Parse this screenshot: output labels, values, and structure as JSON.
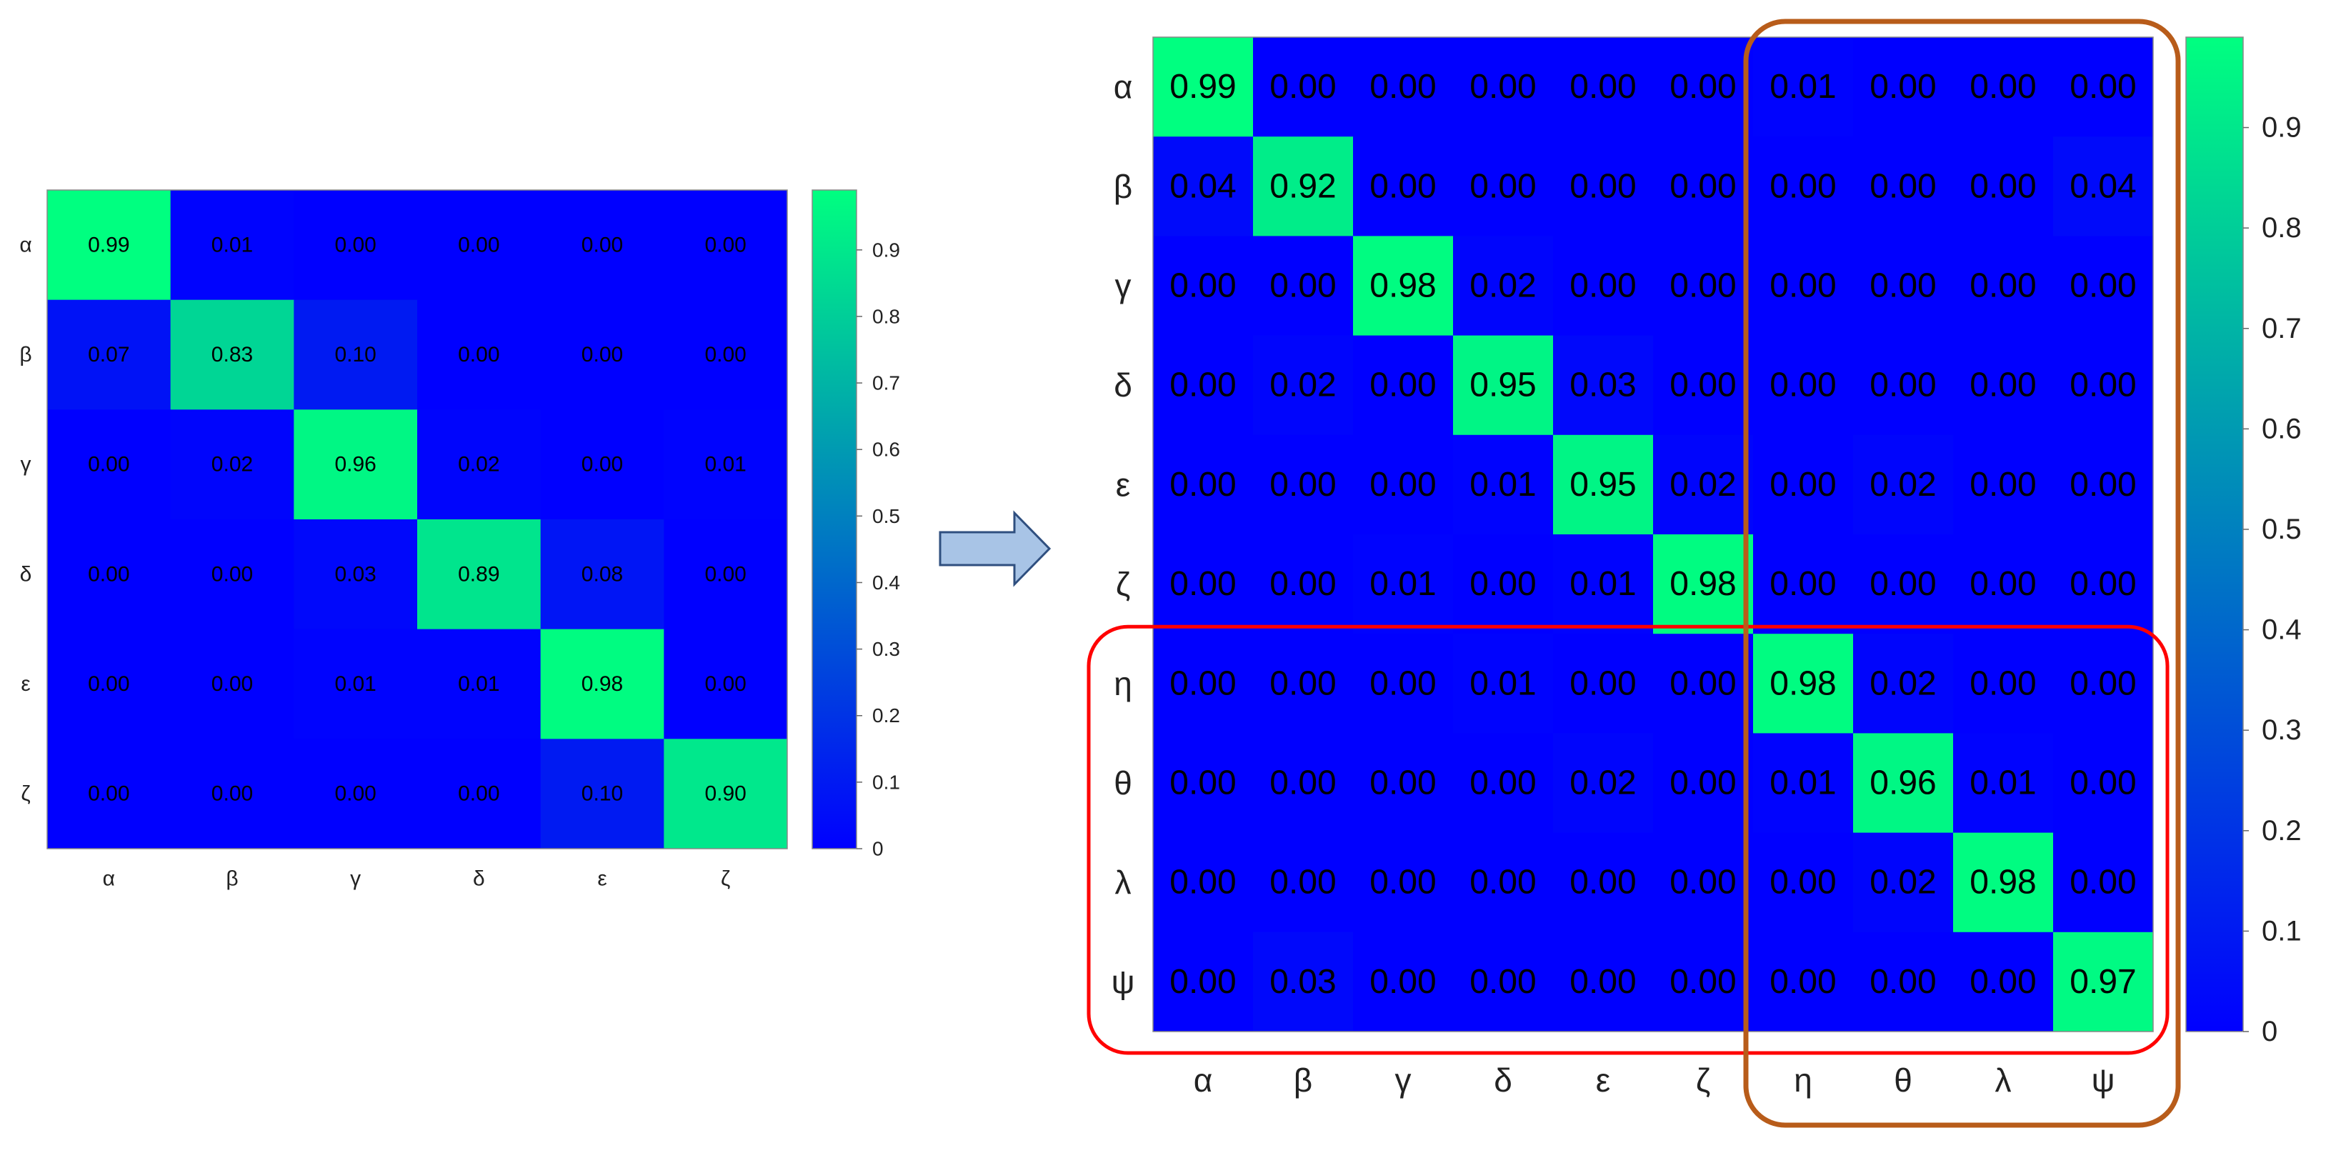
{
  "colors": {
    "low": "#0000FF",
    "high": "#00FF80",
    "arrow_fill": "#A8C4E6",
    "arrow_stroke": "#2F4F7F",
    "unseen_rows_box": "#FF0000",
    "unseen_cols_box": "#B85C1A"
  },
  "chart_data": [
    {
      "type": "heatmap",
      "title": "",
      "xlabel": "",
      "ylabel": "",
      "x_categories": [
        "α",
        "β",
        "γ",
        "δ",
        "ε",
        "ζ"
      ],
      "y_categories": [
        "α",
        "β",
        "γ",
        "δ",
        "ε",
        "ζ"
      ],
      "values": [
        [
          0.99,
          0.01,
          0.0,
          0.0,
          0.0,
          0.0
        ],
        [
          0.07,
          0.83,
          0.1,
          0.0,
          0.0,
          0.0
        ],
        [
          0.0,
          0.02,
          0.96,
          0.02,
          0.0,
          0.01
        ],
        [
          0.0,
          0.0,
          0.03,
          0.89,
          0.08,
          0.0
        ],
        [
          0.0,
          0.0,
          0.01,
          0.01,
          0.98,
          0.0
        ],
        [
          0.0,
          0.0,
          0.0,
          0.0,
          0.1,
          0.9
        ]
      ],
      "colorbar": {
        "min": 0,
        "max": 0.99,
        "ticks": [
          0,
          0.1,
          0.2,
          0.3,
          0.4,
          0.5,
          0.6,
          0.7,
          0.8,
          0.9
        ],
        "tick_labels": [
          "0",
          "0.1",
          "0.2",
          "0.3",
          "0.4",
          "0.5",
          "0.6",
          "0.7",
          "0.8",
          "0.9"
        ]
      }
    },
    {
      "type": "heatmap",
      "title": "",
      "xlabel": "",
      "ylabel": "",
      "x_categories": [
        "α",
        "β",
        "γ",
        "δ",
        "ε",
        "ζ",
        "η",
        "θ",
        "λ",
        "ψ"
      ],
      "y_categories": [
        "α",
        "β",
        "γ",
        "δ",
        "ε",
        "ζ",
        "η",
        "θ",
        "λ",
        "ψ"
      ],
      "values": [
        [
          0.99,
          0.0,
          0.0,
          0.0,
          0.0,
          0.0,
          0.01,
          0.0,
          0.0,
          0.0
        ],
        [
          0.04,
          0.92,
          0.0,
          0.0,
          0.0,
          0.0,
          0.0,
          0.0,
          0.0,
          0.04
        ],
        [
          0.0,
          0.0,
          0.98,
          0.02,
          0.0,
          0.0,
          0.0,
          0.0,
          0.0,
          0.0
        ],
        [
          0.0,
          0.02,
          0.0,
          0.95,
          0.03,
          0.0,
          0.0,
          0.0,
          0.0,
          0.0
        ],
        [
          0.0,
          0.0,
          0.0,
          0.01,
          0.95,
          0.02,
          0.0,
          0.02,
          0.0,
          0.0
        ],
        [
          0.0,
          0.0,
          0.01,
          0.0,
          0.01,
          0.98,
          0.0,
          0.0,
          0.0,
          0.0
        ],
        [
          0.0,
          0.0,
          0.0,
          0.01,
          0.0,
          0.0,
          0.98,
          0.02,
          0.0,
          0.0
        ],
        [
          0.0,
          0.0,
          0.0,
          0.0,
          0.02,
          0.0,
          0.01,
          0.96,
          0.01,
          0.0
        ],
        [
          0.0,
          0.0,
          0.0,
          0.0,
          0.0,
          0.0,
          0.0,
          0.02,
          0.98,
          0.0
        ],
        [
          0.0,
          0.03,
          0.0,
          0.0,
          0.0,
          0.0,
          0.0,
          0.0,
          0.0,
          0.97
        ]
      ],
      "highlight_rows": [
        6,
        9
      ],
      "highlight_cols": [
        6,
        9
      ],
      "colorbar": {
        "min": 0,
        "max": 0.99,
        "ticks": [
          0,
          0.1,
          0.2,
          0.3,
          0.4,
          0.5,
          0.6,
          0.7,
          0.8,
          0.9
        ],
        "tick_labels": [
          "0",
          "0.1",
          "0.2",
          "0.3",
          "0.4",
          "0.5",
          "0.6",
          "0.7",
          "0.8",
          "0.9"
        ]
      }
    }
  ]
}
